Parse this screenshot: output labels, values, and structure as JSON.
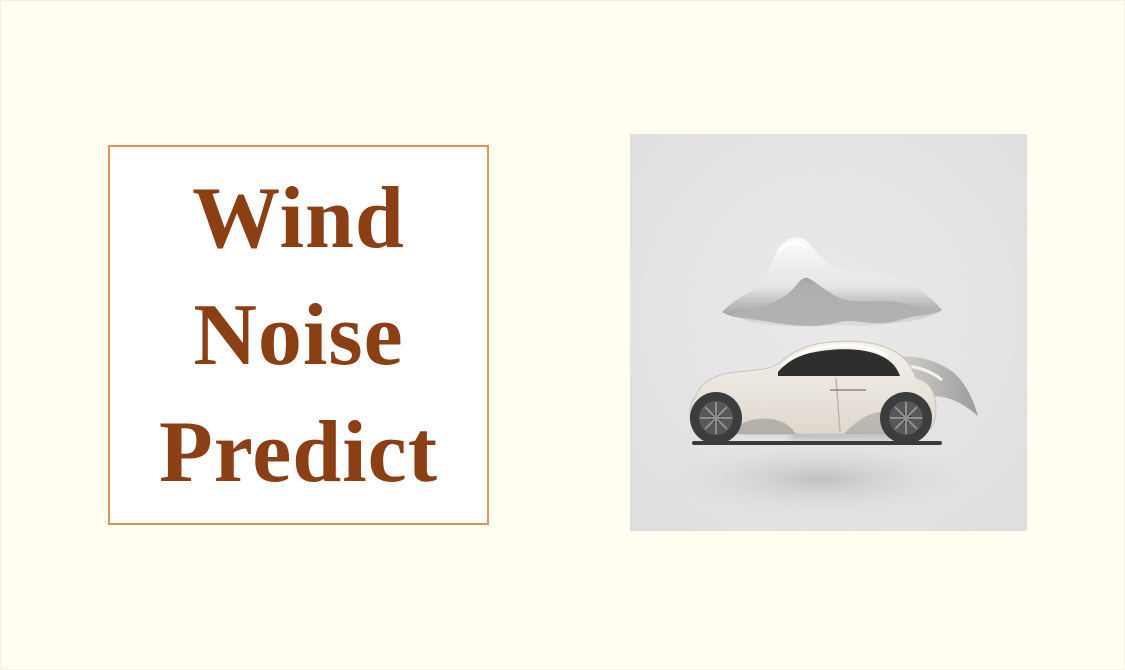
{
  "title": {
    "lines": [
      "Wind",
      "Noise",
      "Predict"
    ]
  },
  "illustration": {
    "subject": "car-with-wind-icon",
    "colors": {
      "background": "#fffef0",
      "box_border": "#e1935a",
      "title_text": "#8b3f14",
      "art_background": "#e4e3e4",
      "car_body": "#ece7df",
      "car_window": "#2e2e2e",
      "tire": "#3b3c3e"
    }
  }
}
